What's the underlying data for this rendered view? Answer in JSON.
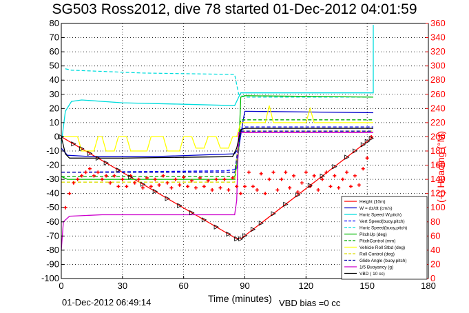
{
  "chart_data": {
    "type": "line",
    "title": "SG503 Ross2012, dive 78 started 01-Dec-2012 04:01:59",
    "xlabel": "Time (minutes)",
    "ylabel": "",
    "y2label": "(+) Heading (°M)",
    "xlim": [
      0,
      180
    ],
    "ylim": [
      -100,
      80
    ],
    "y2lim": [
      0,
      360
    ],
    "xticks": [
      0,
      30,
      60,
      90,
      120,
      150,
      180
    ],
    "yticks": [
      -100,
      -90,
      -80,
      -70,
      -60,
      -50,
      -40,
      -30,
      -20,
      -10,
      0,
      10,
      20,
      30,
      40,
      50,
      60,
      70,
      80
    ],
    "y2ticks": [
      0,
      20,
      40,
      60,
      80,
      100,
      120,
      140,
      160,
      180,
      200,
      220,
      240,
      260,
      280,
      300,
      320,
      340,
      360
    ],
    "grid": true,
    "legend_position": "bottom-right",
    "series": [
      {
        "name": "Height (10m)",
        "color": "#ff0000",
        "style": "solid",
        "points": [
          [
            0,
            0
          ],
          [
            86,
            -72
          ],
          [
            88,
            -72
          ],
          [
            153,
            0
          ]
        ]
      },
      {
        "name": "W = dz/dt (cm/s)",
        "color": "#0000cc",
        "style": "solid",
        "points": [
          [
            0,
            -8
          ],
          [
            3,
            -13
          ],
          [
            15,
            -14
          ],
          [
            45,
            -14
          ],
          [
            85,
            -12
          ],
          [
            87,
            -8
          ],
          [
            89,
            10
          ],
          [
            90,
            18
          ],
          [
            153,
            17
          ]
        ]
      },
      {
        "name": "Horiz Speed W,pitch)",
        "color": "#00dddd",
        "style": "solid",
        "points": [
          [
            0,
            -5
          ],
          [
            2,
            18
          ],
          [
            5,
            25
          ],
          [
            10,
            26
          ],
          [
            30,
            24
          ],
          [
            60,
            23
          ],
          [
            85,
            22
          ],
          [
            87,
            28
          ],
          [
            88,
            31
          ],
          [
            153,
            31
          ],
          [
            153,
            79
          ]
        ]
      },
      {
        "name": "Vert Speed(buoy,pitch)",
        "color": "#0000ff",
        "style": "dashed",
        "points": [
          [
            0,
            -25
          ],
          [
            4,
            -25
          ],
          [
            80,
            -24
          ],
          [
            86,
            -23
          ],
          [
            88,
            5
          ],
          [
            90,
            7
          ],
          [
            153,
            7
          ]
        ]
      },
      {
        "name": "Horiz Speed(buoy,pitch)",
        "color": "#00dddd",
        "style": "dashed",
        "points": [
          [
            2,
            48
          ],
          [
            5,
            47
          ],
          [
            40,
            45
          ],
          [
            85,
            44
          ],
          [
            87,
            30
          ],
          [
            90,
            28
          ],
          [
            153,
            28
          ]
        ]
      },
      {
        "name": "PitchUp (deg)",
        "color": "#00bb00",
        "style": "solid",
        "points": [
          [
            0,
            -28
          ],
          [
            3,
            -30
          ],
          [
            85,
            -30
          ],
          [
            87,
            -10
          ],
          [
            88,
            28
          ],
          [
            90,
            29
          ],
          [
            153,
            28
          ]
        ]
      },
      {
        "name": "PitchControl (mm)",
        "color": "#00aa00",
        "style": "dashed",
        "points": [
          [
            0,
            -28
          ],
          [
            4,
            -28
          ],
          [
            85,
            -28
          ],
          [
            88,
            12
          ],
          [
            153,
            12
          ]
        ]
      },
      {
        "name": "Vehicle Roll Stbd (deg)",
        "color": "#ffff00",
        "style": "solid",
        "points": [
          [
            0,
            0
          ],
          [
            8,
            0
          ],
          [
            10,
            -10
          ],
          [
            16,
            -10
          ],
          [
            18,
            0
          ],
          [
            20,
            0
          ],
          [
            22,
            -10
          ],
          [
            26,
            -10
          ],
          [
            28,
            0
          ],
          [
            32,
            0
          ],
          [
            34,
            -10
          ],
          [
            42,
            -10
          ],
          [
            44,
            0
          ],
          [
            50,
            0
          ],
          [
            52,
            -10
          ],
          [
            58,
            -10
          ],
          [
            60,
            0
          ],
          [
            64,
            0
          ],
          [
            66,
            -8
          ],
          [
            70,
            -8
          ],
          [
            72,
            0
          ],
          [
            76,
            0
          ],
          [
            78,
            -8
          ],
          [
            82,
            -8
          ],
          [
            84,
            0
          ],
          [
            86,
            0
          ],
          [
            88,
            10
          ],
          [
            100,
            10
          ],
          [
            102,
            22
          ],
          [
            104,
            10
          ],
          [
            120,
            10
          ],
          [
            122,
            20
          ],
          [
            124,
            10
          ],
          [
            153,
            10
          ]
        ]
      },
      {
        "name": "Roll Control (deg)",
        "color": "#dddd00",
        "style": "dashed",
        "points": [
          [
            0,
            -32
          ],
          [
            85,
            -32
          ],
          [
            87,
            0
          ],
          [
            88,
            4
          ],
          [
            153,
            4
          ]
        ]
      },
      {
        "name": "Glide Angle (buoy,pitch)",
        "color": "#0000aa",
        "style": "dashed",
        "points": [
          [
            0,
            -25
          ],
          [
            85,
            -25
          ],
          [
            88,
            4
          ],
          [
            153,
            4
          ]
        ]
      },
      {
        "name": "1/5 Buoyancy (g)",
        "color": "#cc00cc",
        "style": "solid",
        "points": [
          [
            0,
            -80
          ],
          [
            1,
            -60
          ],
          [
            4,
            -56
          ],
          [
            20,
            -55
          ],
          [
            85,
            -55
          ],
          [
            86,
            -45
          ],
          [
            87,
            3
          ],
          [
            88,
            3
          ],
          [
            153,
            3
          ]
        ]
      },
      {
        "name": "VBD ( 10 cc)",
        "color": "#000000",
        "style": "solid",
        "points": [
          [
            0,
            0
          ],
          [
            2,
            -12
          ],
          [
            4,
            -15
          ],
          [
            30,
            -15
          ],
          [
            84,
            -14
          ],
          [
            86,
            -8
          ],
          [
            88,
            5
          ],
          [
            90,
            6
          ],
          [
            153,
            6
          ]
        ]
      }
    ],
    "heading_series": {
      "name": "Heading (°M)",
      "axis": "right",
      "color": "#ff0000",
      "marker": "+",
      "points": [
        [
          2,
          100
        ],
        [
          4,
          120
        ],
        [
          6,
          135
        ],
        [
          8,
          140
        ],
        [
          10,
          145
        ],
        [
          12,
          150
        ],
        [
          14,
          155
        ],
        [
          16,
          145
        ],
        [
          18,
          150
        ],
        [
          20,
          140
        ],
        [
          22,
          145
        ],
        [
          24,
          135
        ],
        [
          26,
          145
        ],
        [
          28,
          130
        ],
        [
          30,
          140
        ],
        [
          32,
          130
        ],
        [
          34,
          145
        ],
        [
          36,
          135
        ],
        [
          38,
          140
        ],
        [
          40,
          128
        ],
        [
          42,
          142
        ],
        [
          44,
          130
        ],
        [
          46,
          140
        ],
        [
          48,
          132
        ],
        [
          50,
          145
        ],
        [
          52,
          135
        ],
        [
          54,
          128
        ],
        [
          56,
          140
        ],
        [
          58,
          132
        ],
        [
          60,
          143
        ],
        [
          62,
          130
        ],
        [
          64,
          138
        ],
        [
          66,
          128
        ],
        [
          68,
          142
        ],
        [
          70,
          130
        ],
        [
          72,
          138
        ],
        [
          74,
          125
        ],
        [
          76,
          140
        ],
        [
          78,
          128
        ],
        [
          80,
          140
        ],
        [
          82,
          125
        ],
        [
          84,
          142
        ],
        [
          86,
          130
        ],
        [
          88,
          120
        ],
        [
          90,
          130
        ],
        [
          92,
          150
        ],
        [
          94,
          130
        ],
        [
          96,
          125
        ],
        [
          98,
          148
        ],
        [
          100,
          120
        ],
        [
          102,
          140
        ],
        [
          104,
          150
        ],
        [
          106,
          125
        ],
        [
          108,
          140
        ],
        [
          110,
          150
        ],
        [
          112,
          128
        ],
        [
          114,
          145
        ],
        [
          116,
          122
        ],
        [
          118,
          135
        ],
        [
          120,
          150
        ],
        [
          122,
          130
        ],
        [
          124,
          145
        ],
        [
          126,
          125
        ],
        [
          128,
          140
        ],
        [
          130,
          150
        ],
        [
          132,
          130
        ],
        [
          134,
          145
        ],
        [
          136,
          128
        ],
        [
          138,
          140
        ],
        [
          140,
          150
        ],
        [
          142,
          130
        ],
        [
          144,
          145
        ],
        [
          146,
          132
        ],
        [
          148,
          155
        ],
        [
          150,
          170
        ],
        [
          152,
          200
        ]
      ]
    },
    "markers": {
      "series": "Height (10m)",
      "symbol": "triangle",
      "x": [
        0,
        6,
        10,
        14,
        18,
        22,
        28,
        34,
        40,
        46,
        52,
        58,
        64,
        70,
        76,
        82,
        86,
        88,
        90,
        94,
        98,
        104,
        110,
        116,
        122,
        128,
        134,
        140,
        144,
        148,
        150,
        152
      ]
    },
    "legend": [
      "Height (10m)",
      "W = dz/dt (cm/s)",
      "Horiz Speed W,pitch)",
      "Vert Speed(buoy,pitch)",
      "Horiz Speed(buoy,pitch)",
      "PitchUp (deg)",
      "PitchControl (mm)",
      "Vehicle Roll Stbd (deg)",
      "Roll Control (deg)",
      "Glide Angle (buoy,pitch)",
      "1/5 Buoyancy (g)",
      "VBD ( 10 cc)"
    ]
  },
  "footer": {
    "timestamp": "01-Dec-2012 06:49:14",
    "vbd_bias": "VBD bias =0 cc"
  }
}
